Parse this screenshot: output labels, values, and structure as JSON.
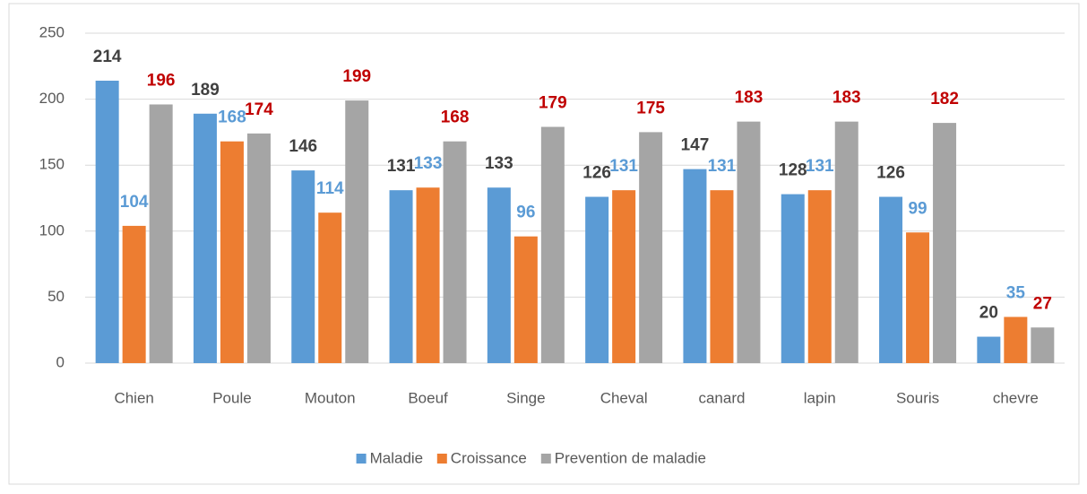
{
  "chart_data": {
    "type": "bar",
    "categories": [
      "Chien",
      "Poule",
      "Mouton",
      "Boeuf",
      "Singe",
      "Cheval",
      "canard",
      "lapin",
      "Souris",
      "chevre"
    ],
    "series": [
      {
        "name": "Maladie",
        "color": "#5b9bd5",
        "label_color": "#404040",
        "values": [
          214,
          189,
          146,
          131,
          133,
          126,
          147,
          128,
          126,
          20
        ]
      },
      {
        "name": "Croissance",
        "color": "#ed7d31",
        "label_color": "#5b9bd5",
        "values": [
          104,
          168,
          114,
          133,
          96,
          131,
          131,
          131,
          99,
          35
        ]
      },
      {
        "name": "Prevention de maladie",
        "color": "#a5a5a5",
        "label_color": "#c00000",
        "values": [
          196,
          174,
          199,
          168,
          179,
          175,
          183,
          183,
          182,
          27
        ]
      }
    ],
    "ylim": [
      0,
      250
    ],
    "yticks": [
      0,
      50,
      100,
      150,
      200,
      250
    ],
    "grid": true,
    "legend": "bottom"
  }
}
